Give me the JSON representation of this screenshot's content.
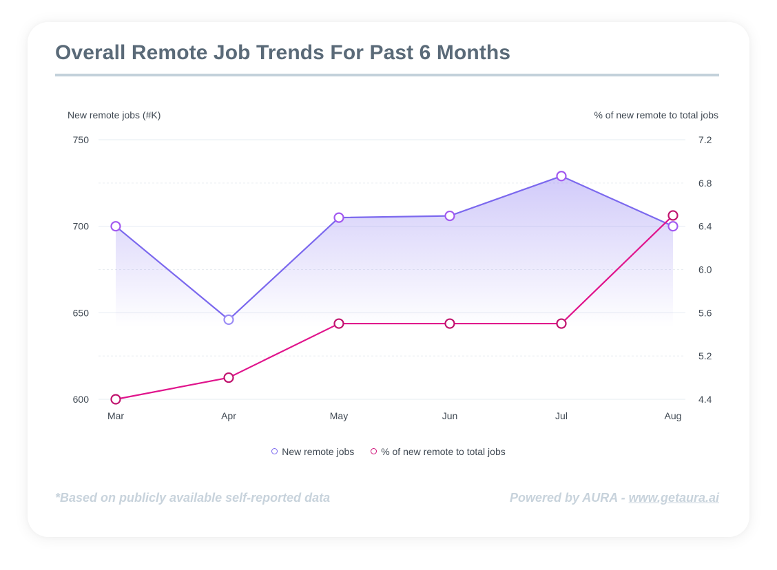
{
  "title": "Overall Remote Job Trends For Past 6 Months",
  "left_axis_title": "New remote jobs (#K)",
  "right_axis_title": "% of new remote to total jobs",
  "left_ticks": [
    "750",
    "700",
    "650",
    "600"
  ],
  "right_ticks": [
    "7.2",
    "6.8",
    "6.4",
    "6.0",
    "5.6",
    "5.2",
    "4.4"
  ],
  "x_ticks": [
    "Mar",
    "Apr",
    "May",
    "Jun",
    "Jul",
    "Aug"
  ],
  "legend": {
    "series1": "New remote jobs",
    "series2": "% of new remote to total jobs"
  },
  "footer": {
    "note": "*Based on publicly available self-reported data",
    "powered_prefix": "Powered by AURA - ",
    "link": "www.getaura.ai"
  },
  "colors": {
    "series1": "#7b68ee",
    "series1_marker": "#a259f0",
    "series2": "#e0148c",
    "series2_marker": "#c0136e",
    "title": "#5a6a78",
    "rule": "#c3d1da",
    "footer": "#c8d3dc"
  },
  "chart_data": {
    "type": "line",
    "title": "Overall Remote Job Trends For Past 6 Months",
    "categories": [
      "Mar",
      "Apr",
      "May",
      "Jun",
      "Jul",
      "Aug"
    ],
    "series": [
      {
        "name": "New remote jobs",
        "axis": "left",
        "unit": "#K",
        "values": [
          700,
          646,
          705,
          706,
          729,
          700
        ],
        "area_fill": true
      },
      {
        "name": "% of new remote to total jobs",
        "axis": "right",
        "unit": "%",
        "values": [
          4.4,
          5.0,
          5.5,
          5.5,
          5.5,
          6.5
        ]
      }
    ],
    "ylabel_left": "New remote jobs (#K)",
    "ylabel_right": "% of new remote to total jobs",
    "ylim_left": [
      600,
      750
    ],
    "ylim_right": [
      4.4,
      7.2
    ],
    "grid": true,
    "legend_position": "bottom"
  }
}
